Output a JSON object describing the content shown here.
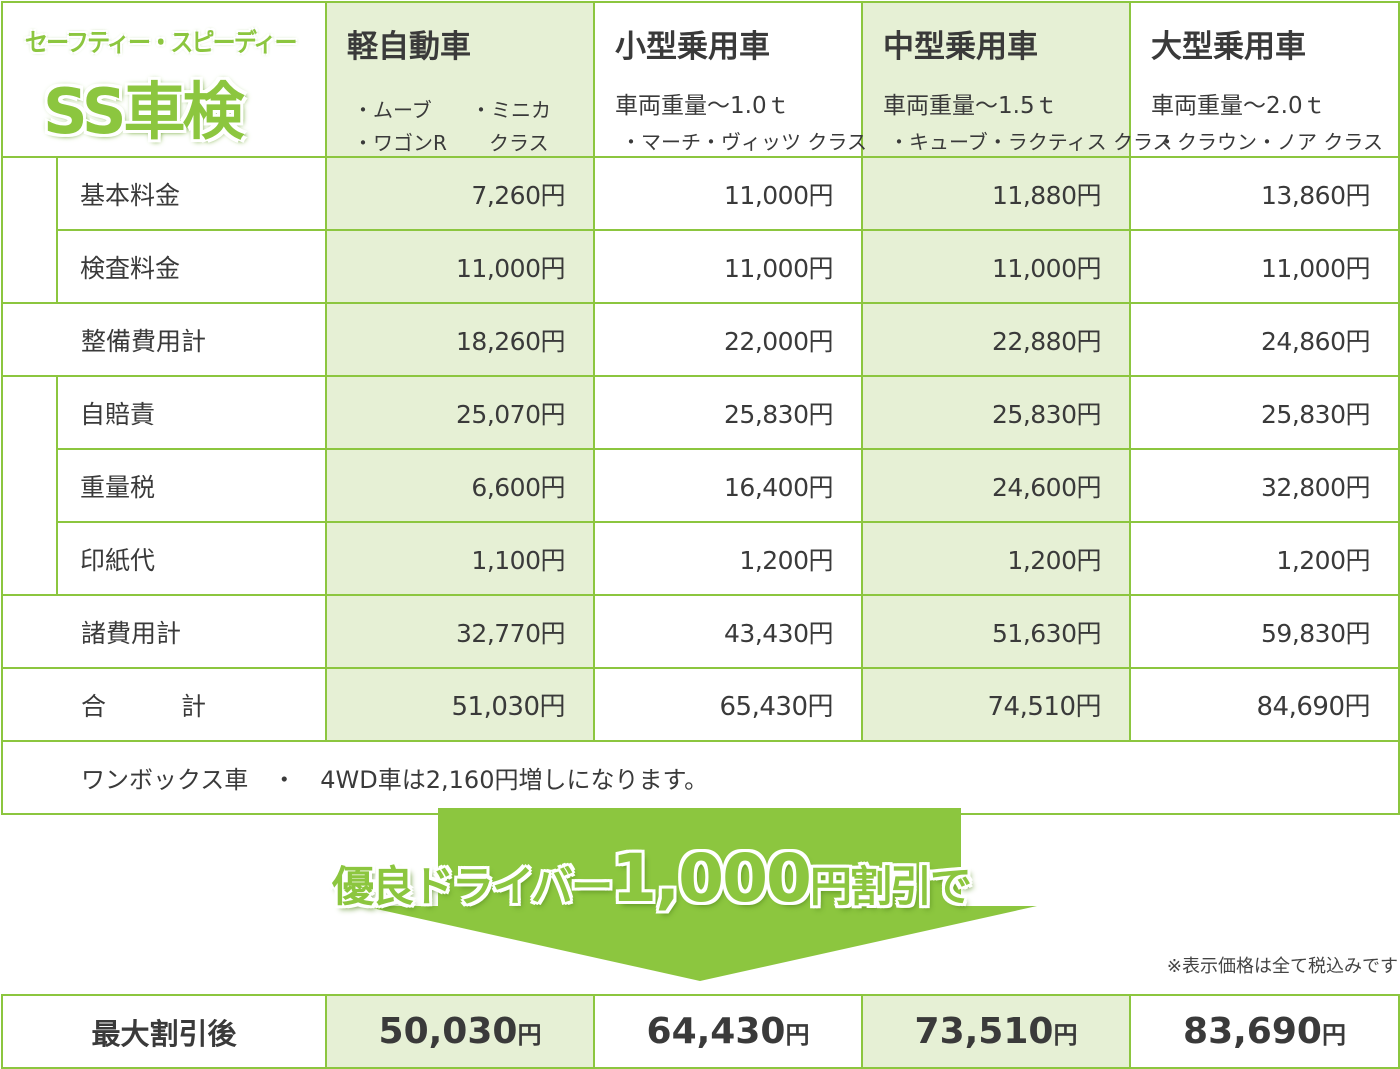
{
  "logo": {
    "top": "セーフティー・スピーディー",
    "main": "SS車検"
  },
  "columns": [
    {
      "title": "軽自動車",
      "kei_examples": [
        "・ムーブ",
        "・ミニカ",
        "・ワゴンR",
        "クラス"
      ]
    },
    {
      "title": "小型乗用車",
      "weight": "車両重量〜1.0ｔ",
      "examples": "・マーチ・ヴィッツ クラス"
    },
    {
      "title": "中型乗用車",
      "weight": "車両重量〜1.5ｔ",
      "examples": "・キューブ・ラクティス クラス"
    },
    {
      "title": "大型乗用車",
      "weight": "車両重量〜2.0ｔ",
      "examples": "・クラウン・ノア クラス"
    }
  ],
  "rows": [
    {
      "label": "基本料金",
      "values": [
        "7,260円",
        "11,000円",
        "11,880円",
        "13,860円"
      ]
    },
    {
      "label": "検査料金",
      "values": [
        "11,000円",
        "11,000円",
        "11,000円",
        "11,000円"
      ]
    },
    {
      "label": "整備費用計",
      "values": [
        "18,260円",
        "22,000円",
        "22,880円",
        "24,860円"
      ]
    },
    {
      "label": "自賠責",
      "values": [
        "25,070円",
        "25,830円",
        "25,830円",
        "25,830円"
      ]
    },
    {
      "label": "重量税",
      "values": [
        "6,600円",
        "16,400円",
        "24,600円",
        "32,800円"
      ]
    },
    {
      "label": "印紙代",
      "values": [
        "1,100円",
        "1,200円",
        "1,200円",
        "1,200円"
      ]
    },
    {
      "label": "諸費用計",
      "values": [
        "32,770円",
        "43,430円",
        "51,630円",
        "59,830円"
      ]
    },
    {
      "label": "合　　　計",
      "values": [
        "51,030円",
        "65,430円",
        "74,510円",
        "84,690円"
      ]
    }
  ],
  "note": "ワンボックス車　・　4WD車は2,160円増しになります。",
  "banner": {
    "part1": "優良ドライバー",
    "part2": "1,000",
    "part3": "円割引で"
  },
  "tax_note": "※表示価格は全て税込みです",
  "after": {
    "label": "最大割引後",
    "values": [
      "50,030",
      "64,430",
      "73,510",
      "83,690"
    ],
    "yen": "円"
  }
}
